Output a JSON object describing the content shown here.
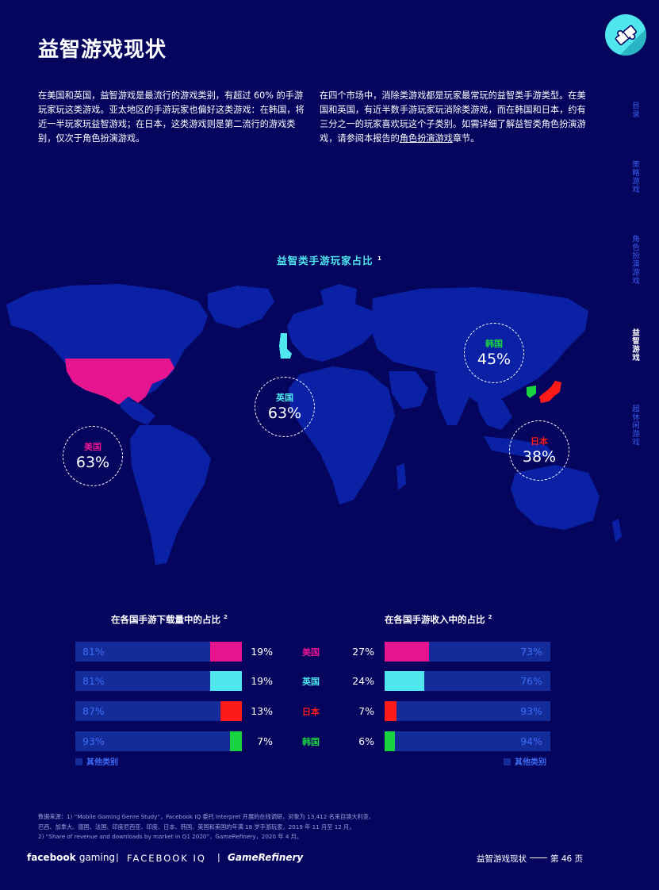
{
  "page": {
    "title": "益智游戏现状",
    "intro_left": "在美国和英国，益智游戏是最流行的游戏类别，有超过 60% 的手游玩家玩这类游戏。亚太地区的手游玩家也偏好这类游戏：在韩国，将近一半玩家玩益智游戏；在日本，这类游戏则是第二流行的游戏类别，仅次于角色扮演游戏。",
    "intro_right_before": "在四个市场中，消除类游戏都是玩家最常玩的益智类手游类型。在美国和英国，有近半数手游玩家玩消除类游戏，而在韩国和日本，约有三分之一的玩家喜欢玩这个子类别。如需详细了解益智类角色扮演游戏，请参阅本报告的",
    "intro_right_link": "角色扮演游戏",
    "intro_right_after": "章节。",
    "icon": "puzzle-piece-icon"
  },
  "side_nav": [
    {
      "label": "目录",
      "active": false
    },
    {
      "label": "策略游戏",
      "active": false
    },
    {
      "label": "角色扮演游戏",
      "active": false
    },
    {
      "label": "益智游戏",
      "active": true
    },
    {
      "label": "超休闲游戏",
      "active": false
    }
  ],
  "map": {
    "title": "益智类手游玩家占比",
    "title_note": "1",
    "markets": [
      {
        "name": "美国",
        "value": "63%",
        "color": "#e6158f"
      },
      {
        "name": "英国",
        "value": "63%",
        "color": "#4fe6ee"
      },
      {
        "name": "韩国",
        "value": "45%",
        "color": "#19d440"
      },
      {
        "name": "日本",
        "value": "38%",
        "color": "#ff1a1a"
      }
    ]
  },
  "chart_data": [
    {
      "type": "bar",
      "title": "在各国手游下载量中的占比",
      "title_note": "2",
      "categories": [
        "美国",
        "英国",
        "日本",
        "韩国"
      ],
      "series": [
        {
          "values": [
            19,
            19,
            13,
            7
          ]
        },
        {
          "name": "其他类别",
          "values": [
            81,
            81,
            87,
            93
          ]
        }
      ],
      "value_labels": [
        "19%",
        "19%",
        "13%",
        "7%"
      ],
      "other_labels": [
        "81%",
        "81%",
        "87%",
        "93%"
      ],
      "legend": "其他类别",
      "colors": [
        "#e6158f",
        "#4fe6ee",
        "#ff1a1a",
        "#19d440"
      ],
      "other_color": "#132c9a",
      "ylim": [
        0,
        100
      ]
    },
    {
      "type": "bar",
      "title": "在各国手游收入中的占比",
      "title_note": "2",
      "categories": [
        "美国",
        "英国",
        "日本",
        "韩国"
      ],
      "series": [
        {
          "values": [
            27,
            24,
            7,
            6
          ]
        },
        {
          "name": "其他类别",
          "values": [
            73,
            76,
            93,
            94
          ]
        }
      ],
      "value_labels": [
        "27%",
        "24%",
        "7%",
        "6%"
      ],
      "other_labels": [
        "73%",
        "76%",
        "93%",
        "94%"
      ],
      "legend": "其他类别",
      "colors": [
        "#e6158f",
        "#4fe6ee",
        "#ff1a1a",
        "#19d440"
      ],
      "other_color": "#132c9a",
      "ylim": [
        0,
        100
      ]
    }
  ],
  "footnotes": [
    "数据来源：1) “Mobile Gaming Genre Study”，Facebook IQ 委托 Interpret 开展的在线调研，对象为 13,412 名来自澳大利亚、",
    "巴西、加拿大、德国、法国、印度尼西亚、印度、日本、韩国、英国和美国的年满 18 岁手游玩家，2019 年 11 月至 12 月。",
    "2) “Share of revenue and downloads by market in Q1 2020”，GameRefinery，2020 年 4 月。"
  ],
  "footer": {
    "brand1_bold": "facebook",
    "brand1_light": "gaming",
    "separator": "|",
    "brand2": "FACEBOOK IQ",
    "brand3": "GameRefinery",
    "section": "益智游戏现状",
    "page": "第 46 页"
  }
}
